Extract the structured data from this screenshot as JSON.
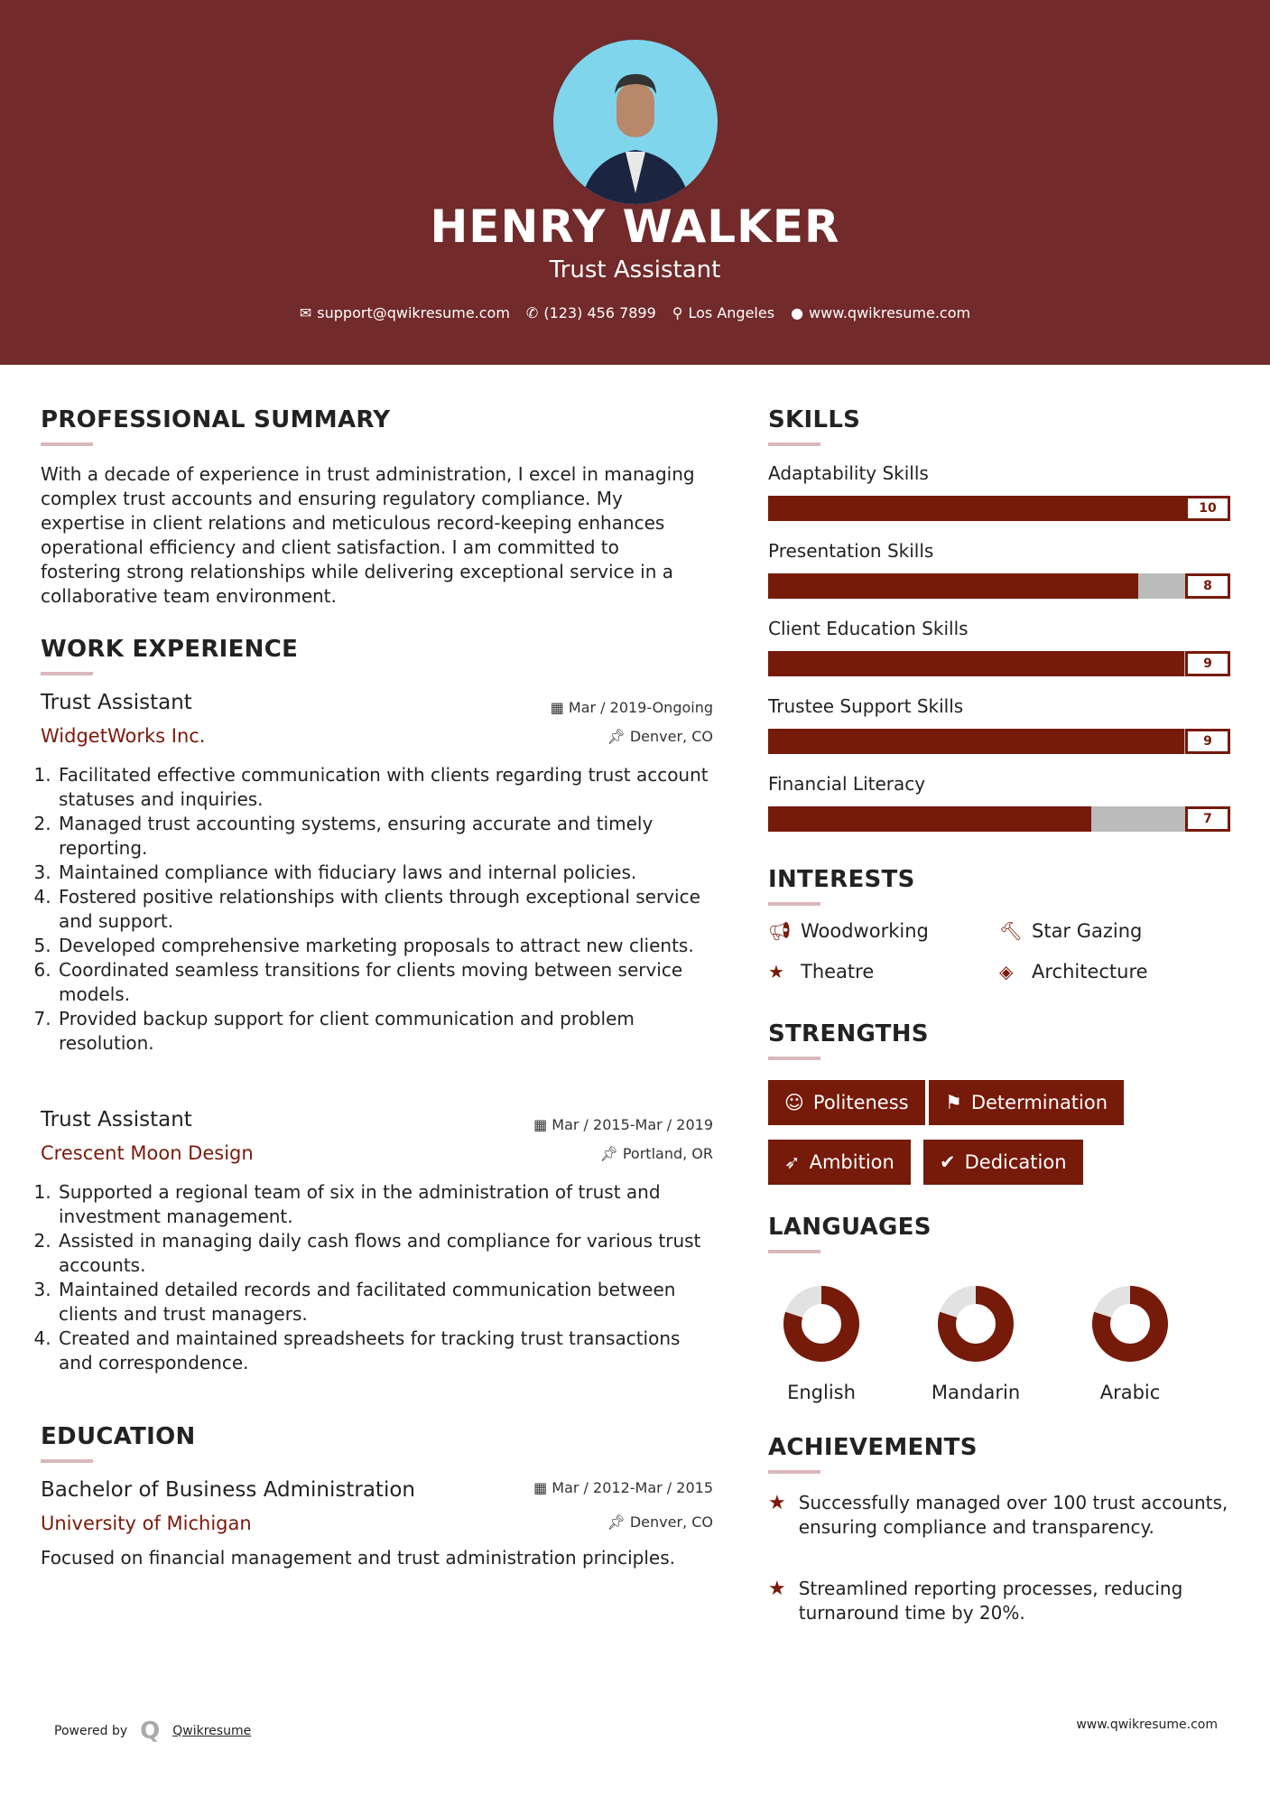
{
  "header": {
    "name": "HENRY WALKER",
    "title": "Trust Assistant",
    "contact": [
      {
        "icon": "envelope-icon",
        "text": "support@qwikresume.com"
      },
      {
        "icon": "phone-icon",
        "text": "(123) 456 7899"
      },
      {
        "icon": "map-pin-icon",
        "text": "Los Angeles"
      },
      {
        "icon": "globe-icon",
        "text": "www.qwikresume.com"
      }
    ]
  },
  "summary": {
    "title": "PROFESSIONAL SUMMARY",
    "text": "With a decade of experience in trust administration, I excel in managing complex trust accounts and ensuring regulatory compliance. My expertise in client relations and meticulous record-keeping enhances operational efficiency and client satisfaction. I am committed to fostering strong relationships while delivering exceptional service in a collaborative team environment."
  },
  "work": {
    "title": "WORK EXPERIENCE",
    "jobs": [
      {
        "title": "Trust Assistant",
        "company": "WidgetWorks Inc.",
        "dates": "Mar / 2019-Ongoing",
        "location": "Denver, CO",
        "items": [
          "Facilitated effective communication with clients regarding trust account statuses and inquiries.",
          "Managed trust accounting systems, ensuring accurate and timely reporting.",
          "Maintained compliance with fiduciary laws and internal policies.",
          "Fostered positive relationships with clients through exceptional service and support.",
          "Developed comprehensive marketing proposals to attract new clients.",
          "Coordinated seamless transitions for clients moving between service models.",
          "Provided backup support for client communication and problem resolution."
        ]
      },
      {
        "title": "Trust Assistant",
        "company": "Crescent Moon Design",
        "dates": "Mar / 2015-Mar / 2019",
        "location": "Portland, OR",
        "items": [
          "Supported a regional team of six in the administration of trust and investment management.",
          "Assisted in managing daily cash flows and compliance for various trust accounts.",
          "Maintained detailed records and facilitated communication between clients and trust managers.",
          "Created and maintained spreadsheets for tracking trust transactions and correspondence."
        ]
      }
    ]
  },
  "education": {
    "title": "EDUCATION",
    "degree": "Bachelor of Business Administration",
    "school": "University of Michigan",
    "dates": "Mar / 2012-Mar / 2015",
    "location": "Denver, CO",
    "description": "Focused on financial management and trust administration principles."
  },
  "skills": {
    "title": "SKILLS",
    "max": 10,
    "items": [
      {
        "name": "Adaptability Skills",
        "value": 10
      },
      {
        "name": "Presentation Skills",
        "value": 8
      },
      {
        "name": "Client Education Skills",
        "value": 9
      },
      {
        "name": "Trustee Support Skills",
        "value": 9
      },
      {
        "name": "Financial Literacy",
        "value": 7
      }
    ]
  },
  "interests": {
    "title": "INTERESTS",
    "items": [
      {
        "icon": "megaphone-icon",
        "label": "Woodworking"
      },
      {
        "icon": "gavel-icon",
        "label": "Star Gazing"
      },
      {
        "icon": "star-icon",
        "label": "Theatre"
      },
      {
        "icon": "ticket-icon",
        "label": "Architecture"
      }
    ]
  },
  "strengths": {
    "title": "STRENGTHS",
    "items": [
      {
        "icon": "smile-icon",
        "label": "Politeness"
      },
      {
        "icon": "flag-icon",
        "label": "Determination"
      },
      {
        "icon": "rocket-icon",
        "label": "Ambition"
      },
      {
        "icon": "check-circle-icon",
        "label": "Dedication"
      }
    ]
  },
  "languages": {
    "title": "LANGUAGES",
    "items": [
      {
        "name": "English",
        "level": 0.8
      },
      {
        "name": "Mandarin",
        "level": 0.8
      },
      {
        "name": "Arabic",
        "level": 0.8
      }
    ]
  },
  "achievements": {
    "title": "ACHIEVEMENTS",
    "items": [
      "Successfully managed over 100 trust accounts, ensuring compliance and transparency.",
      "Streamlined reporting processes, reducing turnaround time by 20%."
    ]
  },
  "footer": {
    "powered_by": "Powered by",
    "brand": "Qwikresume",
    "url": "www.qwikresume.com"
  },
  "colors": {
    "accent": "#761a0a",
    "header": "#722a2a",
    "track": "#bbbbbb"
  }
}
